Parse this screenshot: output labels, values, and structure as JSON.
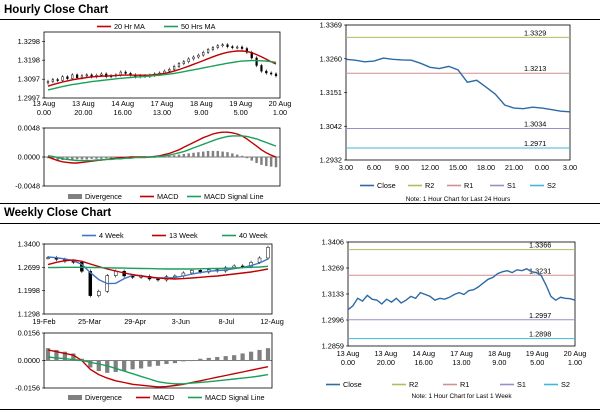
{
  "colors": {
    "ma_short": "#c00000",
    "ma_mid": "#c00000",
    "ma_long": "#1aa05a",
    "ma_4wk": "#4472c4",
    "macd": "#c00000",
    "signal": "#1aa05a",
    "divergence": "#808080",
    "close": "#2e6aa6",
    "r2": "#a8c060",
    "r1": "#d09090",
    "s1": "#9c8cc8",
    "s2": "#40b8d8",
    "candle": "#000000"
  },
  "sections": {
    "hourly_title": "Hourly Close Chart",
    "weekly_title": "Weekly Close Chart"
  },
  "chart_data": [
    {
      "id": "hourly_price",
      "type": "line",
      "title": "",
      "legend": [
        "20 Hr MA",
        "50 Hrs MA"
      ],
      "yticks": [
        "1.3298",
        "1.3198",
        "1.3097",
        "1.2997"
      ],
      "ylim": [
        1.2997,
        1.3348
      ],
      "xticks": [
        "13 Aug\n0.00",
        "13 Aug\n20.00",
        "14 Aug\n16.00",
        "17 Aug\n13.00",
        "18 Aug\n9.00",
        "19 Aug\n5.00",
        "20 Aug\n1.00"
      ],
      "n": 48,
      "close": [
        1.3085,
        1.3095,
        1.309,
        1.311,
        1.31,
        1.312,
        1.3105,
        1.3115,
        1.312,
        1.311,
        1.3118,
        1.3125,
        1.311,
        1.3115,
        1.312,
        1.3135,
        1.3128,
        1.312,
        1.311,
        1.3115,
        1.3112,
        1.3118,
        1.3125,
        1.313,
        1.314,
        1.315,
        1.3165,
        1.318,
        1.319,
        1.3205,
        1.3215,
        1.3225,
        1.324,
        1.3255,
        1.3265,
        1.3275,
        1.328,
        1.327,
        1.3265,
        1.3268,
        1.326,
        1.324,
        1.321,
        1.317,
        1.314,
        1.313,
        1.3125,
        1.3115
      ],
      "series": [
        {
          "name": "20 Hr MA",
          "values": [
            1.306,
            1.3068,
            1.3075,
            1.3082,
            1.3088,
            1.3094,
            1.3098,
            1.3102,
            1.3106,
            1.3109,
            1.3111,
            1.3113,
            1.3114,
            1.3115,
            1.3116,
            1.3118,
            1.3119,
            1.3119,
            1.3118,
            1.3118,
            1.3118,
            1.3119,
            1.3121,
            1.3124,
            1.3128,
            1.3133,
            1.314,
            1.3148,
            1.3157,
            1.3166,
            1.3176,
            1.3186,
            1.3196,
            1.3206,
            1.3216,
            1.3225,
            1.3233,
            1.324,
            1.3244,
            1.3247,
            1.3247,
            1.3245,
            1.3238,
            1.3228,
            1.3216,
            1.3203,
            1.319,
            1.3178
          ]
        },
        {
          "name": "50 Hrs MA",
          "values": [
            1.304,
            1.3046,
            1.3052,
            1.3058,
            1.3063,
            1.3068,
            1.3072,
            1.3076,
            1.308,
            1.3084,
            1.3087,
            1.309,
            1.3093,
            1.3096,
            1.3099,
            1.3102,
            1.3104,
            1.3106,
            1.3108,
            1.311,
            1.3112,
            1.3114,
            1.3116,
            1.3118,
            1.3121,
            1.3124,
            1.3128,
            1.3132,
            1.3137,
            1.3142,
            1.3147,
            1.3152,
            1.3157,
            1.3162,
            1.3167,
            1.3172,
            1.3177,
            1.3182,
            1.3186,
            1.319,
            1.3193,
            1.3195,
            1.3196,
            1.3196,
            1.3195,
            1.3193,
            1.319,
            1.3187
          ]
        }
      ]
    },
    {
      "id": "hourly_macd",
      "type": "bar",
      "legend": [
        "Divergence",
        "MACD",
        "MACD Signal Line"
      ],
      "yticks": [
        "0.0048",
        "0.0000",
        "-0.0048"
      ],
      "ylim": [
        -0.0048,
        0.0048
      ],
      "n": 48,
      "divergence": [
        -0.0002,
        -0.0004,
        -0.0005,
        -0.0005,
        -0.0005,
        -0.0005,
        -0.0004,
        -0.0004,
        -0.0004,
        -0.0003,
        -0.0003,
        -0.0003,
        -0.0002,
        -0.0002,
        -0.0001,
        -0.0001,
        -0.0001,
        0.0,
        -0.0001,
        -0.0001,
        -0.0001,
        -0.0001,
        -0.0001,
        0.0,
        0.0001,
        0.0002,
        0.0003,
        0.0004,
        0.0005,
        0.0006,
        0.0007,
        0.0008,
        0.0009,
        0.001,
        0.001,
        0.001,
        0.0009,
        0.0008,
        0.0006,
        0.0004,
        0.0002,
        -0.0002,
        -0.0006,
        -0.001,
        -0.0013,
        -0.0015,
        -0.0016,
        -0.0017
      ],
      "series": [
        {
          "name": "MACD",
          "values": [
            0.0,
            -0.0003,
            -0.0006,
            -0.0008,
            -0.0009,
            -0.001,
            -0.001,
            -0.0009,
            -0.0008,
            -0.0007,
            -0.0006,
            -0.0005,
            -0.0004,
            -0.0003,
            -0.0002,
            -0.0001,
            -0.0001,
            0.0,
            0.0,
            0.0,
            0.0,
            0.0,
            0.0001,
            0.0002,
            0.0004,
            0.0006,
            0.0009,
            0.0012,
            0.0016,
            0.002,
            0.0024,
            0.0028,
            0.0032,
            0.0035,
            0.0038,
            0.004,
            0.0041,
            0.0041,
            0.004,
            0.0038,
            0.0035,
            0.003,
            0.0024,
            0.0018,
            0.0012,
            0.0007,
            0.0003,
            0.0
          ]
        },
        {
          "name": "MACD Signal Line",
          "values": [
            0.0002,
            0.0001,
            -0.0001,
            -0.0003,
            -0.0004,
            -0.0005,
            -0.0006,
            -0.0006,
            -0.0006,
            -0.0006,
            -0.0005,
            -0.0005,
            -0.0004,
            -0.0004,
            -0.0003,
            -0.0003,
            -0.0002,
            -0.0002,
            -0.0001,
            -0.0001,
            -0.0001,
            0.0,
            0.0,
            0.0001,
            0.0002,
            0.0003,
            0.0005,
            0.0007,
            0.0009,
            0.0012,
            0.0015,
            0.0018,
            0.0021,
            0.0024,
            0.0027,
            0.003,
            0.0032,
            0.0034,
            0.0035,
            0.0035,
            0.0035,
            0.0034,
            0.0032,
            0.003,
            0.0027,
            0.0024,
            0.0021,
            0.0018
          ]
        }
      ]
    },
    {
      "id": "hourly_close",
      "type": "line",
      "legend": [
        "Close",
        "R2",
        "R1",
        "S1",
        "S2"
      ],
      "note": "Note: 1 Hour Chart for Last 24 Hours",
      "yticks": [
        "1.3369",
        "1.3260",
        "1.3151",
        "1.3042",
        "1.2932"
      ],
      "ylim": [
        1.2932,
        1.3369
      ],
      "xticks": [
        "3.00",
        "6.00",
        "9.00",
        "12.00",
        "15.00",
        "18.00",
        "21.00",
        "0.00",
        "3.00"
      ],
      "x": [
        0,
        1,
        2,
        3,
        4,
        5,
        6,
        7,
        8,
        9,
        10,
        11,
        12,
        13,
        14,
        15,
        16,
        17,
        18,
        19,
        20,
        21,
        22,
        23,
        24
      ],
      "close": [
        1.3258,
        1.3255,
        1.325,
        1.3252,
        1.3262,
        1.3258,
        1.3256,
        1.3255,
        1.3245,
        1.3232,
        1.3228,
        1.3235,
        1.3224,
        1.3184,
        1.319,
        1.3168,
        1.3145,
        1.311,
        1.31,
        1.3098,
        1.3103,
        1.31,
        1.3095,
        1.309,
        1.3088
      ],
      "levels": [
        {
          "name": "R2",
          "value": 1.3329,
          "label": "1.3329"
        },
        {
          "name": "R1",
          "value": 1.3213,
          "label": "1.3213"
        },
        {
          "name": "S1",
          "value": 1.3034,
          "label": "1.3034"
        },
        {
          "name": "S2",
          "value": 1.2971,
          "label": "1.2971"
        }
      ]
    },
    {
      "id": "weekly_price",
      "type": "line",
      "legend": [
        "4 Week",
        "13 Week",
        "40 Week"
      ],
      "yticks": [
        "1.3400",
        "1.2699",
        "1.1998",
        "1.1298"
      ],
      "ylim": [
        1.1298,
        1.34
      ],
      "xticks": [
        "19-Feb",
        "25-Mar",
        "29-Apr",
        "3-Jun",
        "8-Jul",
        "12-Aug"
      ],
      "n": 27,
      "close": [
        1.299,
        1.294,
        1.288,
        1.285,
        1.258,
        1.185,
        1.198,
        1.245,
        1.258,
        1.244,
        1.24,
        1.243,
        1.235,
        1.232,
        1.242,
        1.244,
        1.253,
        1.261,
        1.256,
        1.263,
        1.259,
        1.269,
        1.274,
        1.272,
        1.285,
        1.298,
        1.33
      ],
      "series": [
        {
          "name": "4 Week",
          "values": [
            1.301,
            1.299,
            1.295,
            1.29,
            1.279,
            1.254,
            1.233,
            1.221,
            1.222,
            1.236,
            1.246,
            1.245,
            1.24,
            1.238,
            1.238,
            1.239,
            1.244,
            1.25,
            1.254,
            1.258,
            1.26,
            1.262,
            1.266,
            1.269,
            1.275,
            1.283,
            1.295
          ]
        },
        {
          "name": "13 Week",
          "values": [
            1.278,
            1.285,
            1.29,
            1.292,
            1.288,
            1.28,
            1.272,
            1.265,
            1.259,
            1.253,
            1.248,
            1.244,
            1.241,
            1.238,
            1.236,
            1.235,
            1.236,
            1.238,
            1.24,
            1.242,
            1.244,
            1.247,
            1.25,
            1.253,
            1.256,
            1.26,
            1.265
          ]
        },
        {
          "name": "40 Week",
          "values": [
            1.269,
            1.2695,
            1.27,
            1.27,
            1.27,
            1.2695,
            1.269,
            1.2685,
            1.268,
            1.2675,
            1.267,
            1.2665,
            1.266,
            1.2655,
            1.265,
            1.265,
            1.265,
            1.265,
            1.2655,
            1.266,
            1.2665,
            1.267,
            1.268,
            1.269,
            1.27,
            1.271,
            1.273
          ]
        }
      ]
    },
    {
      "id": "weekly_macd",
      "type": "bar",
      "legend": [
        "Divergence",
        "MACD",
        "MACD Signal Line"
      ],
      "yticks": [
        "0.0156",
        "0.0000",
        "-0.0156"
      ],
      "ylim": [
        -0.0156,
        0.0156
      ],
      "n": 27,
      "divergence": [
        0.007,
        0.006,
        0.005,
        0.004,
        0.001,
        -0.004,
        -0.006,
        -0.007,
        -0.0065,
        -0.006,
        -0.005,
        -0.0045,
        -0.0035,
        -0.003,
        -0.002,
        -0.0015,
        -0.0005,
        0.0,
        0.001,
        0.0015,
        0.002,
        0.0025,
        0.003,
        0.004,
        0.005,
        0.006,
        0.007
      ],
      "series": [
        {
          "name": "MACD",
          "values": [
            0.006,
            0.005,
            0.004,
            0.003,
            0.0,
            -0.005,
            -0.008,
            -0.01,
            -0.0115,
            -0.0125,
            -0.0135,
            -0.014,
            -0.0145,
            -0.015,
            -0.0148,
            -0.0142,
            -0.0135,
            -0.0125,
            -0.0115,
            -0.0105,
            -0.0095,
            -0.0085,
            -0.0075,
            -0.0065,
            -0.0055,
            -0.0045,
            -0.0035
          ]
        },
        {
          "name": "MACD Signal Line",
          "values": [
            0.002,
            0.0015,
            0.001,
            0.0005,
            0.0,
            -0.001,
            -0.002,
            -0.003,
            -0.0045,
            -0.006,
            -0.0075,
            -0.009,
            -0.0105,
            -0.012,
            -0.0128,
            -0.0132,
            -0.0132,
            -0.0128,
            -0.0124,
            -0.012,
            -0.0115,
            -0.011,
            -0.0105,
            -0.01,
            -0.0095,
            -0.0088,
            -0.008
          ]
        }
      ]
    },
    {
      "id": "weekly_close",
      "type": "line",
      "legend": [
        "Close",
        "R2",
        "R1",
        "S1",
        "S2"
      ],
      "note": "Note: 1 Hour Chart for Last 1 Week",
      "yticks": [
        "1.3406",
        "1.3269",
        "1.3133",
        "1.2996",
        "1.2859"
      ],
      "ylim": [
        1.2859,
        1.3406
      ],
      "xticks": [
        "13 Aug\n0.00",
        "13 Aug\n20.00",
        "14 Aug\n16.00",
        "17 Aug\n13.00",
        "18 Aug\n9.00",
        "19 Aug\n5.00",
        "20 Aug\n1.00"
      ],
      "close": [
        1.305,
        1.307,
        1.311,
        1.3095,
        1.3125,
        1.3105,
        1.31,
        1.308,
        1.3105,
        1.309,
        1.311,
        1.3085,
        1.31,
        1.312,
        1.311,
        1.314,
        1.313,
        1.312,
        1.31,
        1.311,
        1.3105,
        1.3115,
        1.313,
        1.314,
        1.313,
        1.315,
        1.3155,
        1.317,
        1.319,
        1.321,
        1.322,
        1.324,
        1.325,
        1.3255,
        1.3245,
        1.326,
        1.3255,
        1.3265,
        1.325,
        1.3245,
        1.323,
        1.318,
        1.312,
        1.31,
        1.3115,
        1.311,
        1.3108,
        1.31
      ],
      "levels": [
        {
          "name": "R2",
          "value": 1.3366,
          "label": "1.3366"
        },
        {
          "name": "R1",
          "value": 1.3231,
          "label": "1.3231"
        },
        {
          "name": "S1",
          "value": 1.2997,
          "label": "1.2997"
        },
        {
          "name": "S2",
          "value": 1.2898,
          "label": "1.2898"
        }
      ]
    }
  ]
}
